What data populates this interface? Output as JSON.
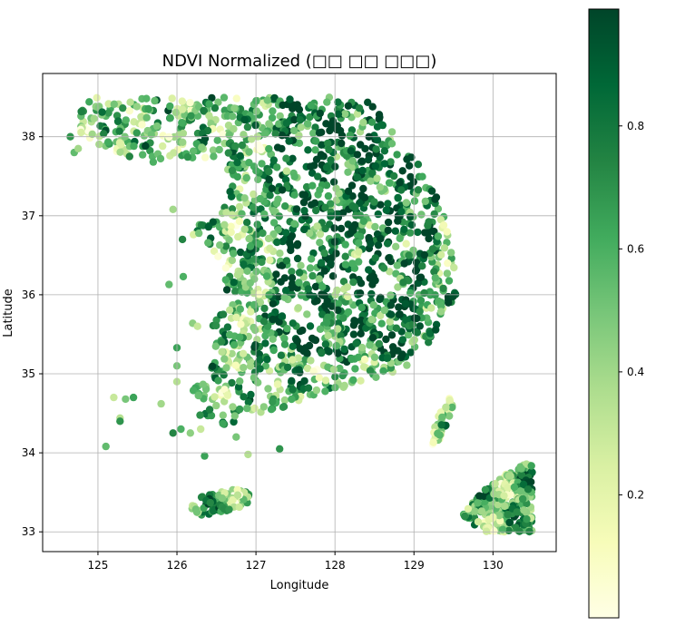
{
  "chart_data": {
    "type": "scatter",
    "title": "NDVI Normalized (□□ □□ □□□)",
    "xlabel": "Longitude",
    "ylabel": "Latitude",
    "xlim": [
      124.3,
      130.8
    ],
    "ylim": [
      32.75,
      38.8
    ],
    "xticks": [
      125,
      126,
      127,
      128,
      129,
      130
    ],
    "yticks": [
      33,
      34,
      35,
      36,
      37,
      38
    ],
    "grid": true,
    "colormap": "YlGn",
    "colorbar": {
      "range": [
        0.0,
        0.99
      ],
      "ticks": [
        0.2,
        0.4,
        0.6,
        0.8
      ],
      "colors": [
        "#ffffe5",
        "#f7fcb9",
        "#d9f0a3",
        "#addd8e",
        "#78c679",
        "#41ab5d",
        "#238443",
        "#006837",
        "#004529"
      ]
    },
    "regions": [
      {
        "name": "mainland",
        "polygon": [
          [
            124.65,
            38.15
          ],
          [
            124.9,
            38.5
          ],
          [
            128.4,
            38.5
          ],
          [
            128.7,
            38.1
          ],
          [
            129.1,
            37.6
          ],
          [
            129.4,
            37.0
          ],
          [
            129.5,
            36.4
          ],
          [
            129.55,
            36.0
          ],
          [
            129.3,
            35.55
          ],
          [
            129.0,
            35.15
          ],
          [
            128.6,
            34.95
          ],
          [
            128.0,
            34.8
          ],
          [
            127.5,
            34.65
          ],
          [
            127.0,
            34.4
          ],
          [
            126.6,
            34.35
          ],
          [
            126.3,
            34.45
          ],
          [
            126.2,
            34.8
          ],
          [
            126.45,
            35.1
          ],
          [
            126.45,
            35.6
          ],
          [
            126.65,
            36.0
          ],
          [
            126.5,
            36.5
          ],
          [
            126.15,
            36.8
          ],
          [
            126.6,
            37.1
          ],
          [
            126.65,
            37.5
          ],
          [
            126.5,
            37.75
          ],
          [
            126.1,
            37.7
          ],
          [
            125.3,
            37.75
          ],
          [
            125.0,
            37.9
          ],
          [
            124.65,
            38.15
          ]
        ]
      },
      {
        "name": "jeju",
        "polygon": [
          [
            126.15,
            33.28
          ],
          [
            126.3,
            33.45
          ],
          [
            126.75,
            33.55
          ],
          [
            126.95,
            33.5
          ],
          [
            126.9,
            33.35
          ],
          [
            126.6,
            33.25
          ],
          [
            126.3,
            33.2
          ],
          [
            126.15,
            33.28
          ]
        ]
      },
      {
        "name": "tsushima",
        "polygon": [
          [
            129.2,
            34.1
          ],
          [
            129.3,
            34.45
          ],
          [
            129.45,
            34.7
          ],
          [
            129.5,
            34.6
          ],
          [
            129.35,
            34.2
          ],
          [
            129.25,
            34.1
          ],
          [
            129.2,
            34.1
          ]
        ]
      },
      {
        "name": "kyushu",
        "polygon": [
          [
            129.6,
            33.2
          ],
          [
            129.9,
            33.55
          ],
          [
            130.2,
            33.75
          ],
          [
            130.5,
            33.92
          ],
          [
            130.5,
            33.0
          ],
          [
            129.9,
            33.0
          ],
          [
            129.6,
            33.2
          ]
        ]
      }
    ]
  }
}
